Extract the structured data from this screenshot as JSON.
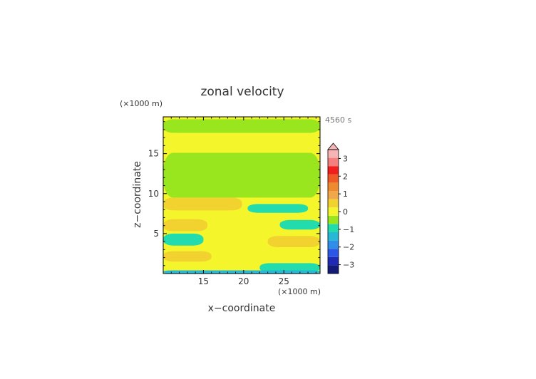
{
  "chart_data": {
    "type": "heatmap",
    "title": "zonal velocity",
    "time_label": "4560 s",
    "xlabel": "x−coordinate",
    "ylabel": "z−coordinate",
    "x_unit": "(×1000 m)",
    "y_unit": "(×1000 m)",
    "xlim": [
      10,
      29.5
    ],
    "ylim": [
      0,
      19.6
    ],
    "x_ticks": [
      15,
      20,
      25
    ],
    "y_ticks": [
      5,
      10,
      15
    ],
    "x_tick_labels": [
      "15",
      "20",
      "25"
    ],
    "y_tick_labels": [
      "5",
      "10",
      "15"
    ],
    "colorbar": {
      "min": -3.5,
      "max": 3.5,
      "step": 0.5,
      "extend": "max",
      "ticks": [
        3,
        2,
        1,
        0,
        -1,
        -2,
        -3
      ],
      "tick_labels": [
        "3",
        "2",
        "1",
        "0",
        "−1",
        "−2",
        "−3"
      ],
      "colors": [
        "#141a78",
        "#1e2ab4",
        "#2b56e6",
        "#2f8fe8",
        "#25b9d6",
        "#23dcae",
        "#9ae61e",
        "#f5f52c",
        "#f2d22e",
        "#f0a84a",
        "#ef8a2e",
        "#f05a24",
        "#f21d1d",
        "#f57f7f",
        "#f7b4b4"
      ]
    },
    "bands": [
      {
        "y0": 19.3,
        "y1": 19.6,
        "x0": 10,
        "x1": 29.5,
        "value": 0.2
      },
      {
        "y0": 17.6,
        "y1": 19.3,
        "x0": 10,
        "x1": 29.5,
        "value": -0.2
      },
      {
        "y0": 15.1,
        "y1": 17.6,
        "x0": 10,
        "x1": 29.5,
        "value": 0.2
      },
      {
        "y0": 9.5,
        "y1": 15.1,
        "x0": 10,
        "x1": 29.5,
        "value": -0.2
      },
      {
        "y0": 7.9,
        "y1": 9.5,
        "x0": 10,
        "x1": 19.8,
        "value": 0.7
      },
      {
        "y0": 7.6,
        "y1": 8.7,
        "x0": 20.5,
        "x1": 28.0,
        "value": -0.7
      },
      {
        "y0": 5.3,
        "y1": 6.8,
        "x0": 10,
        "x1": 15.5,
        "value": 0.7
      },
      {
        "y0": 3.5,
        "y1": 5.0,
        "x0": 10,
        "x1": 15.0,
        "value": -0.7
      },
      {
        "y0": 5.5,
        "y1": 6.7,
        "x0": 24.5,
        "x1": 29.5,
        "value": -0.7
      },
      {
        "y0": 3.3,
        "y1": 4.7,
        "x0": 23.0,
        "x1": 29.5,
        "value": 0.7
      },
      {
        "y0": 1.5,
        "y1": 2.8,
        "x0": 10,
        "x1": 16.0,
        "value": 0.7
      },
      {
        "y0": 0.2,
        "y1": 1.3,
        "x0": 22.0,
        "x1": 29.5,
        "value": -0.7
      },
      {
        "y0": 0.0,
        "y1": 0.4,
        "x0": 10,
        "x1": 29.5,
        "value": -1.2
      }
    ]
  }
}
